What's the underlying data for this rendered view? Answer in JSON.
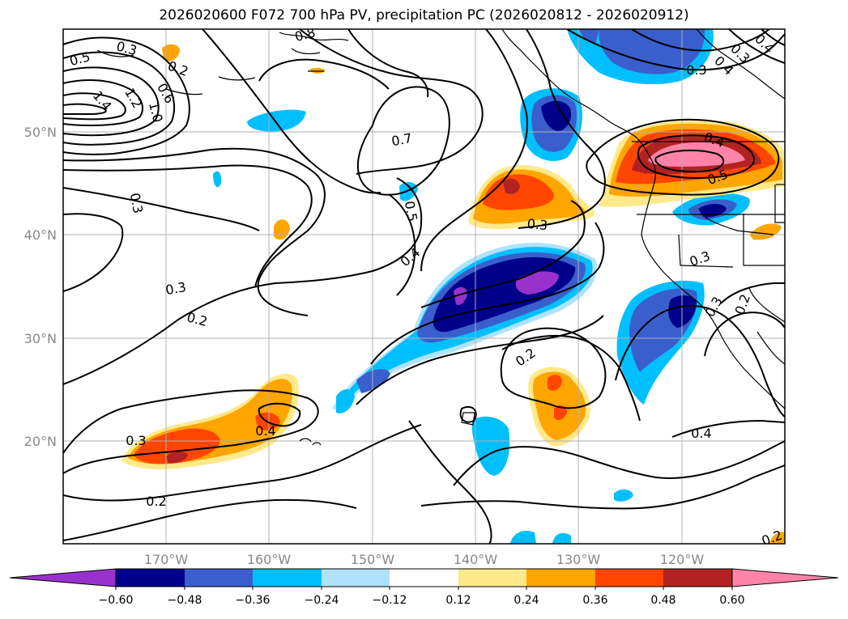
{
  "title": "2026020600 F072 700 hPa PV, precipitation PC (2026020812 - 2026020912)",
  "map": {
    "lon_labels": [
      "170°W",
      "160°W",
      "150°W",
      "140°W",
      "130°W",
      "120°W"
    ],
    "lat_labels": [
      "50°N",
      "40°N",
      "30°N",
      "20°N"
    ],
    "contour_labels": [
      "0.5",
      "0.3",
      "0.2",
      "1.4",
      "1.0",
      "1.2",
      "0.8",
      "0.6",
      "0.3",
      "0.7",
      "0.5",
      "0.4",
      "0.3",
      "0.2",
      "0.3",
      "0.4",
      "0.3",
      "0.2",
      "0.4",
      "0.2",
      "0.3",
      "0.4",
      "0.5",
      "0.3",
      "0.3",
      "0.2",
      "0.4",
      "0.3",
      "0.4",
      "0.2"
    ],
    "colors": {
      "neg_060": "#9932cc",
      "neg_048": "#00008b",
      "neg_036": "#3a5fcd",
      "neg_024": "#00bfff",
      "neg_012": "#b0e2ff",
      "zero": "#ffffff",
      "pos_012": "#ffe98a",
      "pos_024": "#ffa500",
      "pos_036": "#ff4500",
      "pos_048": "#b22222",
      "pos_060": "#ff83a8"
    }
  },
  "colorbar": {
    "ticks": [
      "−0.60",
      "−0.48",
      "−0.36",
      "−0.24",
      "−0.12",
      "0.12",
      "0.24",
      "0.36",
      "0.48",
      "0.60"
    ],
    "colors": [
      "#9932cc",
      "#00008b",
      "#3a5fcd",
      "#00bfff",
      "#b0e2ff",
      "#ffffff",
      "#ffe98a",
      "#ffa500",
      "#ff4500",
      "#b22222",
      "#ff83a8"
    ]
  }
}
